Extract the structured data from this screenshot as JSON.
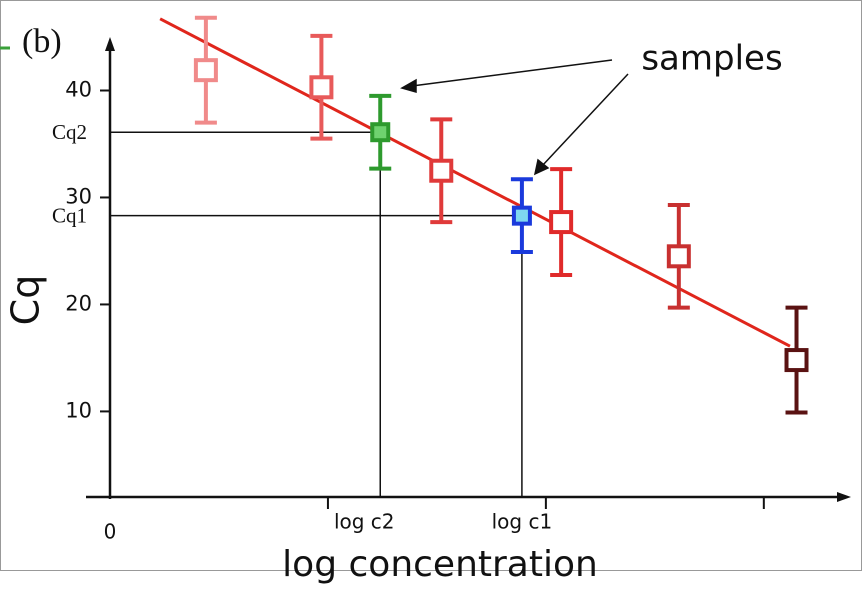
{
  "chart_data": {
    "type": "errorbar",
    "title": "(b)",
    "x_label": "log concentration",
    "y_label": "Cq",
    "annotation": "samples",
    "xlim": [
      0,
      3.4
    ],
    "ylim": [
      2,
      45
    ],
    "xticks": [
      0,
      {
        "value": 1,
        "label": null
      },
      {
        "value": 1.24,
        "label": "log c2"
      },
      {
        "value": 1.89,
        "label": "log c1"
      },
      {
        "value": 2,
        "label": null
      },
      {
        "value": 3,
        "label": null
      }
    ],
    "yticks": [
      10,
      20,
      30,
      40,
      {
        "value": 28.3,
        "label": "Cq1"
      },
      {
        "value": 36.1,
        "label": "Cq2"
      }
    ],
    "standards": {
      "x": [
        0.44,
        0.97,
        1.52,
        2.07,
        2.61,
        3.15
      ],
      "values": [
        41.9,
        40.3,
        32.5,
        27.7,
        24.5,
        14.8
      ],
      "errors": [
        4.9,
        4.8,
        4.8,
        4.95,
        4.8,
        4.9
      ],
      "colors": [
        "#f08a8a",
        "#e85a5a",
        "#e03a3a",
        "#e02a2a",
        "#c83030",
        "#5a1212"
      ]
    },
    "samples": {
      "x": [
        1.24,
        1.89
      ],
      "values": [
        36.1,
        28.3
      ],
      "errors": [
        3.4,
        3.4
      ],
      "colors": [
        "#2e9a2e",
        "#1a3adc"
      ],
      "fills": [
        "#6fd26f",
        "#7fd8f0"
      ]
    },
    "fit_line": {
      "x": [
        0.23,
        3.12
      ],
      "values": [
        46.7,
        16.1
      ],
      "color": "#e0261c"
    }
  }
}
